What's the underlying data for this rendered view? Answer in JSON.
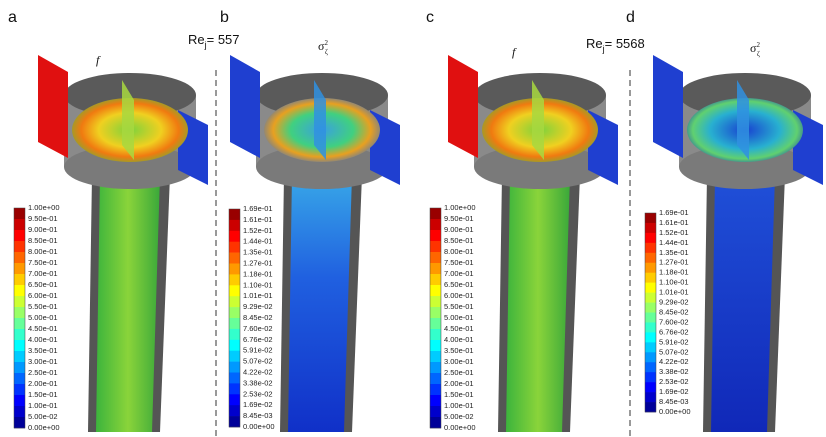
{
  "panels": [
    {
      "label": "a",
      "variable": {
        "symbol": "f"
      },
      "colorbar": [
        "1.00e+00",
        "9.50e-01",
        "9.00e-01",
        "8.50e-01",
        "8.00e-01",
        "7.50e-01",
        "7.00e-01",
        "6.50e-01",
        "6.00e-01",
        "5.50e-01",
        "5.00e-01",
        "4.50e-01",
        "4.00e-01",
        "3.50e-01",
        "3.00e-01",
        "2.50e-01",
        "2.00e-01",
        "1.50e-01",
        "1.00e-01",
        "5.00e-02",
        "0.00e+00"
      ]
    },
    {
      "label": "b",
      "variable": {
        "symbol": "σ",
        "sub": "ζ",
        "sup": "2"
      },
      "colorbar": [
        "1.69e-01",
        "1.61e-01",
        "1.52e-01",
        "1.44e-01",
        "1.35e-01",
        "1.27e-01",
        "1.18e-01",
        "1.10e-01",
        "1.01e-01",
        "9.29e-02",
        "8.45e-02",
        "7.60e-02",
        "6.76e-02",
        "5.91e-02",
        "5.07e-02",
        "4.22e-02",
        "3.38e-02",
        "2.53e-02",
        "1.69e-02",
        "8.45e-03",
        "0.00e+00"
      ]
    },
    {
      "label": "c",
      "variable": {
        "symbol": "f"
      },
      "colorbar": [
        "1.00e+00",
        "9.50e-01",
        "9.00e-01",
        "8.50e-01",
        "8.00e-01",
        "7.50e-01",
        "7.00e-01",
        "6.50e-01",
        "6.00e-01",
        "5.50e-01",
        "5.00e-01",
        "4.50e-01",
        "4.00e-01",
        "3.50e-01",
        "3.00e-01",
        "2.50e-01",
        "2.00e-01",
        "1.50e-01",
        "1.00e-01",
        "5.00e-02",
        "0.00e+00"
      ]
    },
    {
      "label": "d",
      "variable": {
        "symbol": "σ",
        "sub": "ζ",
        "sup": "2"
      },
      "colorbar": [
        "1.69e-01",
        "1.61e-01",
        "1.52e-01",
        "1.44e-01",
        "1.35e-01",
        "1.27e-01",
        "1.18e-01",
        "1.10e-01",
        "1.01e-01",
        "9.29e-02",
        "8.45e-02",
        "7.60e-02",
        "6.76e-02",
        "5.91e-02",
        "5.07e-02",
        "4.22e-02",
        "3.38e-02",
        "2.53e-02",
        "1.69e-02",
        "8.45e-03",
        "0.00e+00"
      ]
    }
  ],
  "reynolds": [
    {
      "prefix": "Re",
      "sub": "j",
      "value": "= 557"
    },
    {
      "prefix": "Re",
      "sub": "j",
      "value": "= 5568"
    }
  ]
}
